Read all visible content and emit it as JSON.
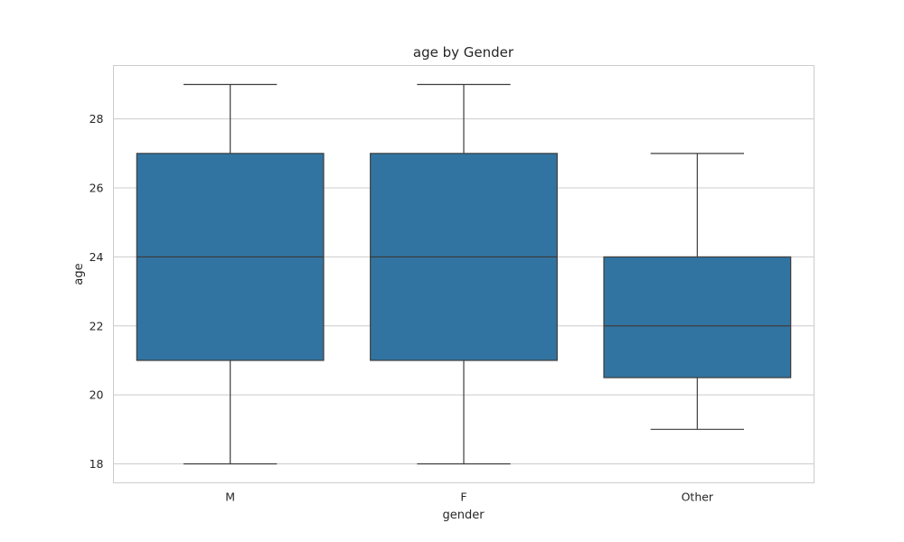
{
  "chart_data": {
    "type": "box",
    "title": "age by Gender",
    "xlabel": "gender",
    "ylabel": "age",
    "categories": [
      "M",
      "F",
      "Other"
    ],
    "boxes": [
      {
        "category": "M",
        "min": 18,
        "q1": 21,
        "median": 24,
        "q3": 27,
        "max": 29
      },
      {
        "category": "F",
        "min": 18,
        "q1": 21,
        "median": 24,
        "q3": 27,
        "max": 29
      },
      {
        "category": "Other",
        "min": 19,
        "q1": 20.5,
        "median": 22,
        "q3": 24,
        "max": 27
      }
    ],
    "ylim": [
      17.45,
      29.55
    ],
    "yticks": [
      18,
      20,
      22,
      24,
      26,
      28
    ],
    "grid": true,
    "color": "#3274a1"
  }
}
